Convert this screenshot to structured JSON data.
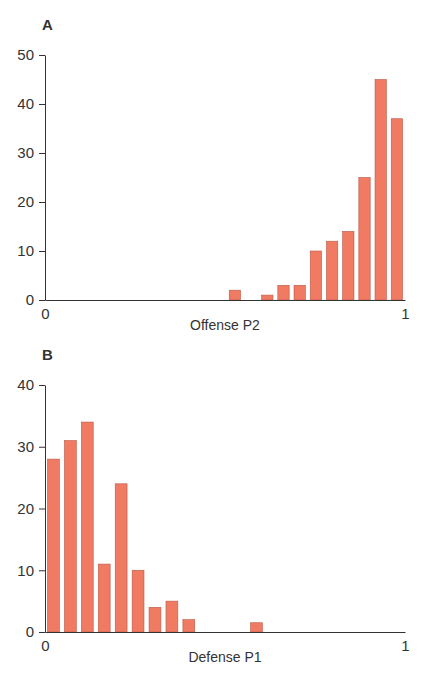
{
  "chart_data": [
    {
      "type": "histogram",
      "title": "A",
      "x_label": "Offense P2",
      "bins": [
        0.505,
        0.55,
        0.595,
        0.64,
        0.685,
        0.73,
        0.775,
        0.82,
        0.865,
        0.91,
        0.955,
        1.0
      ],
      "counts": [
        2,
        0,
        1,
        3,
        3,
        10,
        12,
        14,
        25,
        45,
        37
      ],
      "xlim": [
        0,
        1
      ],
      "ylim": [
        0,
        50
      ],
      "xticks": [
        0,
        1
      ],
      "yticks": [
        0,
        10,
        20,
        30,
        40,
        50
      ],
      "color": "#f07a62"
    },
    {
      "type": "histogram",
      "title": "B",
      "x_label": "Defense P1",
      "bins": [
        0,
        0.047,
        0.094,
        0.141,
        0.188,
        0.235,
        0.282,
        0.329,
        0.376,
        0.423,
        0.47,
        0.517,
        0.564,
        0.611
      ],
      "counts": [
        28,
        31,
        34,
        11,
        24,
        10,
        4,
        5,
        2,
        0,
        0,
        0,
        1.5
      ],
      "xlim": [
        0,
        1
      ],
      "ylim": [
        0,
        40
      ],
      "xticks": [
        0,
        1
      ],
      "yticks": [
        0,
        10,
        20,
        30,
        40
      ],
      "color": "#f07a62"
    }
  ]
}
